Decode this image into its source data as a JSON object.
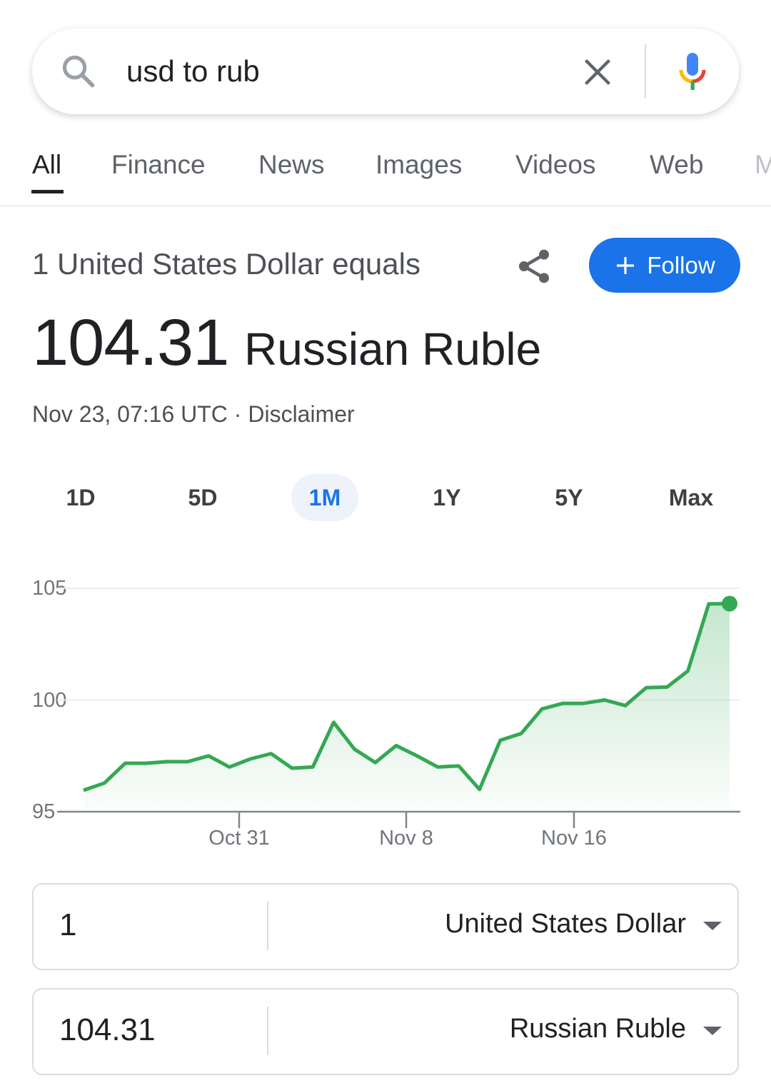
{
  "search": {
    "query": "usd to rub",
    "icons": [
      "search-icon",
      "clear-icon",
      "mic-icon"
    ]
  },
  "tabs": [
    {
      "label": "All",
      "active": true
    },
    {
      "label": "Finance"
    },
    {
      "label": "News"
    },
    {
      "label": "Images"
    },
    {
      "label": "Videos"
    },
    {
      "label": "Web"
    },
    {
      "label": "M"
    }
  ],
  "result": {
    "equals_text": "1 United States Dollar equals",
    "follow_label": "Follow",
    "value": "104.31",
    "currency": "Russian Ruble",
    "timestamp": "Nov 23, 07:16 UTC",
    "separator": " · ",
    "disclaimer": "Disclaimer"
  },
  "ranges": [
    {
      "label": "1D"
    },
    {
      "label": "5D"
    },
    {
      "label": "1M",
      "active": true
    },
    {
      "label": "1Y"
    },
    {
      "label": "5Y"
    },
    {
      "label": "Max"
    }
  ],
  "colors": {
    "accent": "#1a73e8",
    "line": "#34a853"
  },
  "chart_data": {
    "type": "area",
    "ylim": [
      95,
      105
    ],
    "yticks": [
      "105",
      "100",
      "95"
    ],
    "xticks": [
      "Oct 31",
      "Nov 8",
      "Nov 16"
    ],
    "grid": true,
    "x_start": "Oct 23",
    "values": [
      95.96,
      96.28,
      97.17,
      97.17,
      97.24,
      97.24,
      97.5,
      97.0,
      97.36,
      97.6,
      96.95,
      97.0,
      99.0,
      97.8,
      97.2,
      97.96,
      97.5,
      97.0,
      97.05,
      96.0,
      98.2,
      98.5,
      99.6,
      99.85,
      99.85,
      100.0,
      99.75,
      100.55,
      100.58,
      101.3,
      104.3,
      104.31
    ]
  },
  "converter": [
    {
      "amount": "1",
      "currency": "United States Dollar"
    },
    {
      "amount": "104.31",
      "currency": "Russian Ruble"
    }
  ]
}
